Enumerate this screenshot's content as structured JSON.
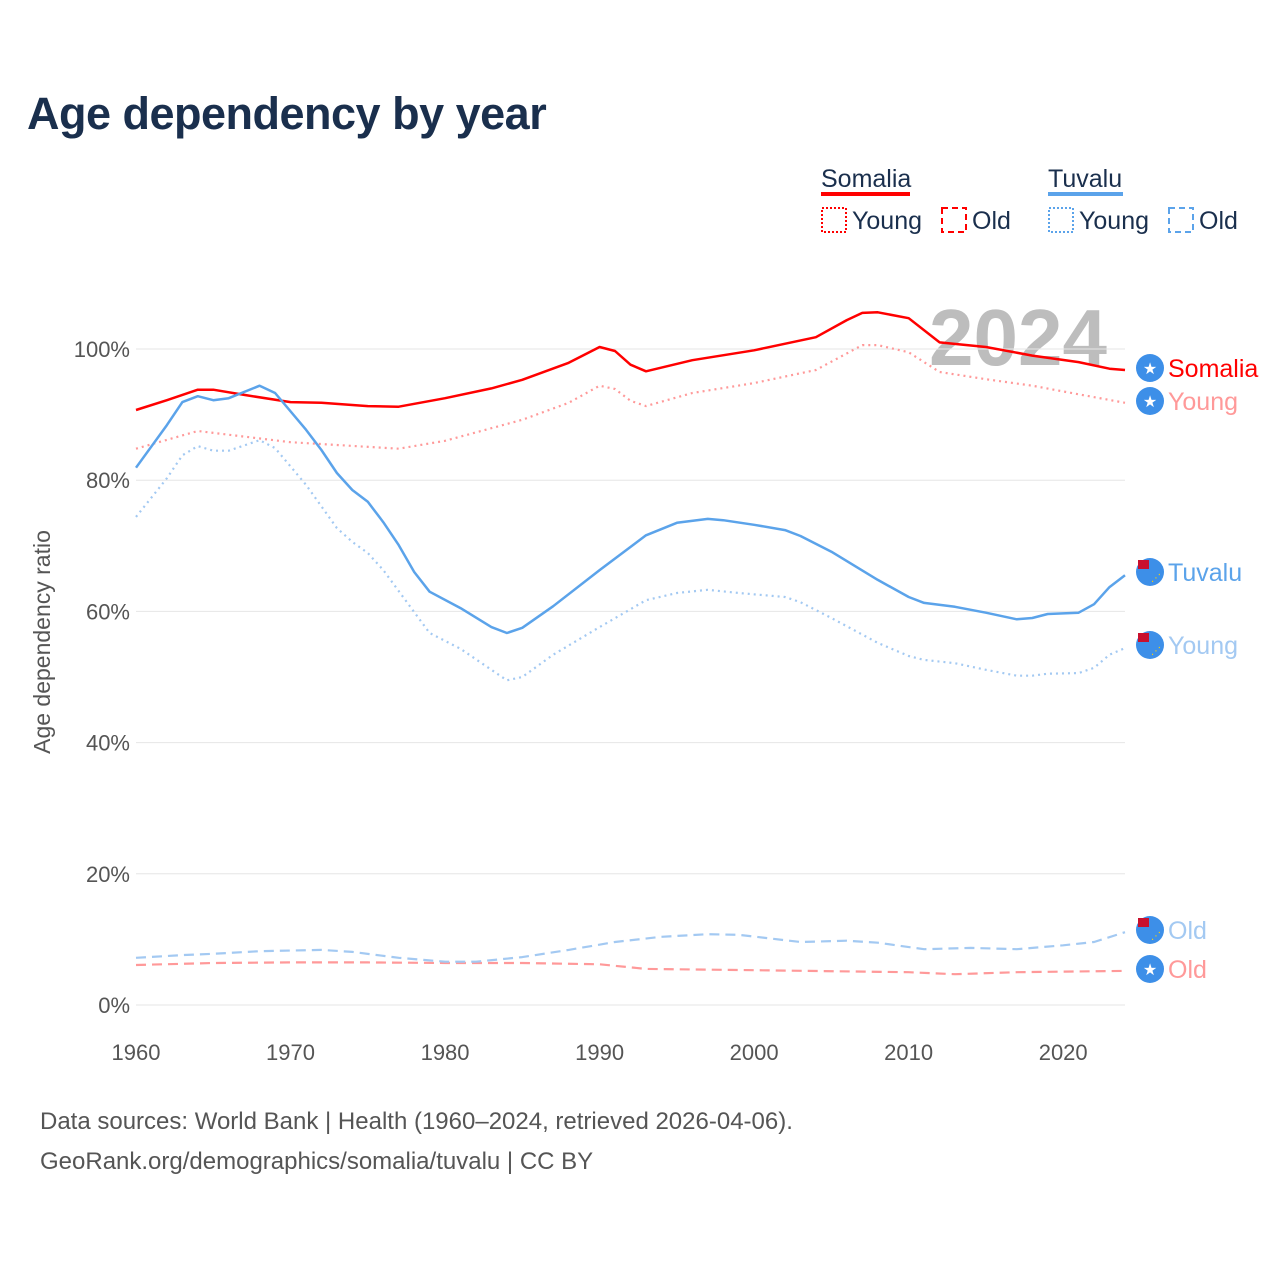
{
  "title": "Age dependency by year",
  "source_line1": "Data sources: World Bank | Health (1960–2024, retrieved 2026-04-06).",
  "source_line2": "GeoRank.org/demographics/somalia/tuvalu | CC BY",
  "year_watermark": "2024",
  "legend": {
    "groups": [
      {
        "country": "Somalia",
        "color": "#ff0000",
        "items": [
          "Young",
          "Old"
        ]
      },
      {
        "country": "Tuvalu",
        "color": "#5ba3ea",
        "items": [
          "Young",
          "Old"
        ]
      }
    ]
  },
  "end_labels": [
    "Somalia",
    "Young",
    "Tuvalu",
    "Young",
    "Old",
    "Old"
  ],
  "chart_data": {
    "type": "line",
    "title": "Age dependency by year",
    "xlabel": "",
    "ylabel": "Age dependency ratio",
    "xlim": [
      1960,
      2024
    ],
    "ylim": [
      0,
      110
    ],
    "x_ticks": [
      "1960",
      "1970",
      "1980",
      "1990",
      "2000",
      "2010",
      "2020"
    ],
    "y_ticks": [
      "0%",
      "20%",
      "40%",
      "60%",
      "80%",
      "100%"
    ],
    "grid": true,
    "legend_position": "top-right",
    "series": [
      {
        "name": "Somalia",
        "style": "solid",
        "color": "#ff0000",
        "label_color": "#ff0000",
        "points": [
          [
            1960,
            90.7
          ],
          [
            1962,
            92.2
          ],
          [
            1964,
            93.8
          ],
          [
            1965,
            93.8
          ],
          [
            1967,
            93
          ],
          [
            1970,
            91.9
          ],
          [
            1972,
            91.8
          ],
          [
            1975,
            91.3
          ],
          [
            1977,
            91.2
          ],
          [
            1980,
            92.5
          ],
          [
            1983,
            94
          ],
          [
            1985,
            95.3
          ],
          [
            1988,
            97.9
          ],
          [
            1990,
            100.3
          ],
          [
            1991,
            99.7
          ],
          [
            1992,
            97.6
          ],
          [
            1993,
            96.6
          ],
          [
            1996,
            98.3
          ],
          [
            2000,
            99.8
          ],
          [
            2004,
            101.8
          ],
          [
            2006,
            104.4
          ],
          [
            2007,
            105.5
          ],
          [
            2008,
            105.6
          ],
          [
            2010,
            104.7
          ],
          [
            2012,
            101
          ],
          [
            2015,
            100.3
          ],
          [
            2018,
            99
          ],
          [
            2021,
            98
          ],
          [
            2023,
            97
          ],
          [
            2024,
            96.8
          ]
        ]
      },
      {
        "name": "Somalia Young",
        "style": "dotted",
        "color": "#ff9999",
        "label_color": "#ff9999",
        "points": [
          [
            1960,
            84.8
          ],
          [
            1964,
            87.5
          ],
          [
            1970,
            85.8
          ],
          [
            1977,
            84.8
          ],
          [
            1980,
            86
          ],
          [
            1985,
            89.2
          ],
          [
            1988,
            91.8
          ],
          [
            1990,
            94.4
          ],
          [
            1991,
            93.9
          ],
          [
            1992,
            92.1
          ],
          [
            1993,
            91.3
          ],
          [
            1996,
            93.3
          ],
          [
            2000,
            94.8
          ],
          [
            2004,
            96.8
          ],
          [
            2007,
            100.6
          ],
          [
            2008,
            100.6
          ],
          [
            2010,
            99.5
          ],
          [
            2012,
            96.5
          ],
          [
            2015,
            95.4
          ],
          [
            2018,
            94.4
          ],
          [
            2021,
            93.1
          ],
          [
            2024,
            91.8
          ]
        ]
      },
      {
        "name": "Somalia Old",
        "style": "dashed",
        "color": "#ff9999",
        "label_color": "#ff9999",
        "points": [
          [
            1960,
            6.1
          ],
          [
            1965,
            6.4
          ],
          [
            1970,
            6.5
          ],
          [
            1975,
            6.5
          ],
          [
            1980,
            6.4
          ],
          [
            1985,
            6.4
          ],
          [
            1990,
            6.2
          ],
          [
            1993,
            5.5
          ],
          [
            2000,
            5.3
          ],
          [
            2010,
            5.0
          ],
          [
            2013,
            4.7
          ],
          [
            2017,
            5.0
          ],
          [
            2024,
            5.2
          ]
        ]
      },
      {
        "name": "Tuvalu",
        "style": "solid",
        "color": "#5ba3ea",
        "label_color": "#5ba3ea",
        "points": [
          [
            1960,
            81.9
          ],
          [
            1962,
            88.4
          ],
          [
            1963,
            91.9
          ],
          [
            1964,
            92.8
          ],
          [
            1965,
            92.2
          ],
          [
            1966,
            92.5
          ],
          [
            1968,
            94.4
          ],
          [
            1969,
            93.3
          ],
          [
            1971,
            87.7
          ],
          [
            1972,
            84.6
          ],
          [
            1973,
            81.1
          ],
          [
            1974,
            78.5
          ],
          [
            1975,
            76.7
          ],
          [
            1976,
            73.6
          ],
          [
            1977,
            70.1
          ],
          [
            1978,
            66
          ],
          [
            1979,
            63
          ],
          [
            1981,
            60.5
          ],
          [
            1983,
            57.6
          ],
          [
            1984,
            56.7
          ],
          [
            1985,
            57.5
          ],
          [
            1987,
            60.8
          ],
          [
            1990,
            66.3
          ],
          [
            1993,
            71.6
          ],
          [
            1995,
            73.5
          ],
          [
            1997,
            74.1
          ],
          [
            1998,
            73.9
          ],
          [
            2000,
            73.2
          ],
          [
            2002,
            72.4
          ],
          [
            2003,
            71.5
          ],
          [
            2005,
            69.1
          ],
          [
            2008,
            64.8
          ],
          [
            2010,
            62.2
          ],
          [
            2011,
            61.3
          ],
          [
            2013,
            60.7
          ],
          [
            2015,
            59.8
          ],
          [
            2017,
            58.8
          ],
          [
            2018,
            59
          ],
          [
            2019,
            59.6
          ],
          [
            2021,
            59.8
          ],
          [
            2022,
            61.1
          ],
          [
            2023,
            63.7
          ],
          [
            2024,
            65.5
          ]
        ]
      },
      {
        "name": "Tuvalu Young",
        "style": "dotted",
        "color": "#a3c9f2",
        "label_color": "#a3c9f2",
        "points": [
          [
            1960,
            74.4
          ],
          [
            1962,
            80.3
          ],
          [
            1963,
            83.8
          ],
          [
            1964,
            85.2
          ],
          [
            1965,
            84.5
          ],
          [
            1966,
            84.5
          ],
          [
            1968,
            86.1
          ],
          [
            1969,
            84.9
          ],
          [
            1971,
            79.3
          ],
          [
            1973,
            72.7
          ],
          [
            1974,
            70.6
          ],
          [
            1975,
            68.9
          ],
          [
            1976,
            66.3
          ],
          [
            1978,
            59.9
          ],
          [
            1979,
            56.7
          ],
          [
            1981,
            54.3
          ],
          [
            1983,
            51.1
          ],
          [
            1984,
            49.5
          ],
          [
            1985,
            50
          ],
          [
            1987,
            53.4
          ],
          [
            1990,
            57.6
          ],
          [
            1993,
            61.7
          ],
          [
            1995,
            62.8
          ],
          [
            1997,
            63.3
          ],
          [
            1999,
            62.8
          ],
          [
            2002,
            62.2
          ],
          [
            2003,
            61.4
          ],
          [
            2005,
            59
          ],
          [
            2008,
            55.2
          ],
          [
            2010,
            53.2
          ],
          [
            2011,
            52.6
          ],
          [
            2013,
            52.1
          ],
          [
            2015,
            51.1
          ],
          [
            2017,
            50.2
          ],
          [
            2018,
            50.2
          ],
          [
            2019,
            50.5
          ],
          [
            2021,
            50.6
          ],
          [
            2022,
            51.4
          ],
          [
            2023,
            53.4
          ],
          [
            2024,
            54.4
          ]
        ]
      },
      {
        "name": "Tuvalu Old",
        "style": "dashed",
        "color": "#a3c9f2",
        "label_color": "#a3c9f2",
        "points": [
          [
            1960,
            7.2
          ],
          [
            1963,
            7.6
          ],
          [
            1965,
            7.8
          ],
          [
            1968,
            8.2
          ],
          [
            1972,
            8.4
          ],
          [
            1974,
            8.1
          ],
          [
            1977,
            7.2
          ],
          [
            1980,
            6.6
          ],
          [
            1982,
            6.6
          ],
          [
            1985,
            7.3
          ],
          [
            1988,
            8.4
          ],
          [
            1991,
            9.6
          ],
          [
            1994,
            10.4
          ],
          [
            1997,
            10.8
          ],
          [
            1999,
            10.7
          ],
          [
            2003,
            9.6
          ],
          [
            2006,
            9.8
          ],
          [
            2008,
            9.5
          ],
          [
            2011,
            8.5
          ],
          [
            2014,
            8.7
          ],
          [
            2017,
            8.5
          ],
          [
            2020,
            9.1
          ],
          [
            2022,
            9.6
          ],
          [
            2024,
            11.1
          ]
        ]
      }
    ]
  }
}
